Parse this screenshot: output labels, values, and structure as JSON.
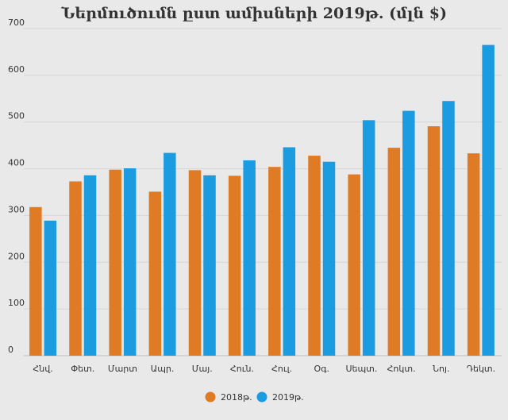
{
  "chart_data": {
    "type": "bar",
    "title": "Ներմուծումն ըստ ամիսների 2019թ. (մլն $)",
    "xlabel": "",
    "ylabel": "",
    "ylim": [
      0,
      700
    ],
    "yticks": [
      0,
      100,
      200,
      300,
      400,
      500,
      600,
      700
    ],
    "categories": [
      "Հնվ.",
      "Փետ.",
      "Մարտ",
      "Ապր.",
      "Մայ.",
      "Հուն.",
      "Հուլ.",
      "Օգ.",
      "Սեպտ.",
      "Հոկտ.",
      "Նոյ.",
      "Դեկտ."
    ],
    "series": [
      {
        "name": "2018թ.",
        "color": "#e07b25",
        "values": [
          318,
          373,
          398,
          351,
          397,
          385,
          404,
          428,
          388,
          445,
          491,
          433
        ]
      },
      {
        "name": "2019թ.",
        "color": "#1b9be0",
        "values": [
          289,
          386,
          401,
          434,
          386,
          418,
          446,
          415,
          504,
          524,
          545,
          665
        ]
      }
    ],
    "grid": true,
    "legend_position": "bottom-center"
  }
}
